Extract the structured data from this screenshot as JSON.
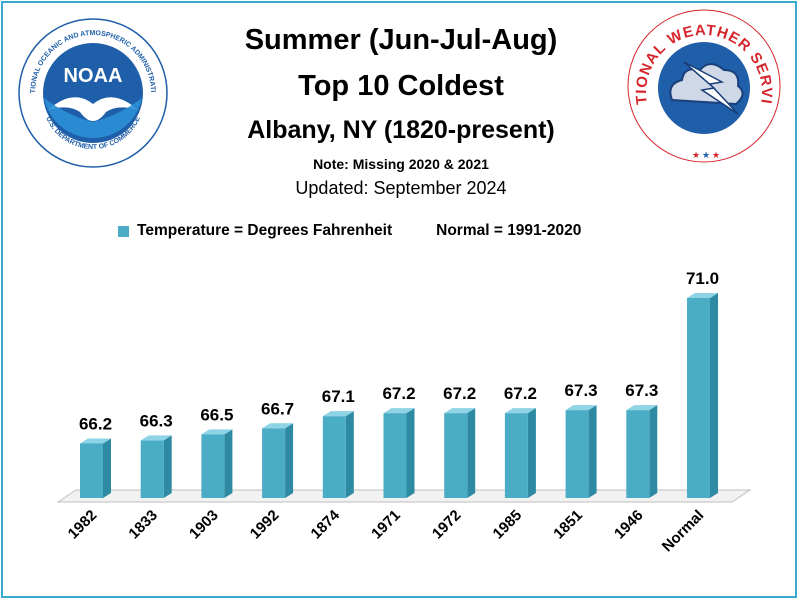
{
  "titles": {
    "line1": "Summer (Jun-Jul-Aug)",
    "line2": "Top  10 Coldest",
    "line3": "Albany, NY (1820-present)",
    "note": "Note: Missing 2020 & 2021",
    "updated": "Updated: September 2024"
  },
  "legend": {
    "series_label": "Temperature = Degrees Fahrenheit",
    "normal_label": "Normal = 1991-2020"
  },
  "logos": {
    "noaa": {
      "center_text": "NOAA",
      "ring_text_top": "NATIONAL OCEANIC AND ATMOSPHERIC ADMINISTRATION",
      "ring_text_bottom": "U.S. DEPARTMENT OF COMMERCE"
    },
    "nws": {
      "ring_text": "NATIONAL WEATHER SERVICE"
    }
  },
  "colors": {
    "bar_front": "#4bacc6",
    "bar_side": "#2e8aa3",
    "bar_top": "#8fd3e6",
    "frame": "#3aa9cf",
    "noaa_blue": "#1f5ea8",
    "nws_red": "#d6262d"
  },
  "chart_data": {
    "type": "bar",
    "categories": [
      "1982",
      "1833",
      "1903",
      "1992",
      "1874",
      "1971",
      "1972",
      "1985",
      "1851",
      "1946",
      "Normal"
    ],
    "values": [
      66.2,
      66.3,
      66.5,
      66.7,
      67.1,
      67.2,
      67.2,
      67.2,
      67.3,
      67.3,
      71.0
    ],
    "value_labels": [
      "66.2",
      "66.3",
      "66.5",
      "66.7",
      "67.1",
      "67.2",
      "67.2",
      "67.2",
      "67.3",
      "67.3",
      "71.0"
    ],
    "series": [
      {
        "name": "Temperature = Degrees Fahrenheit"
      }
    ],
    "ylim": [
      64.4,
      71.0
    ],
    "grid": false,
    "legend_position": "top-left",
    "style": "3d-bar"
  }
}
